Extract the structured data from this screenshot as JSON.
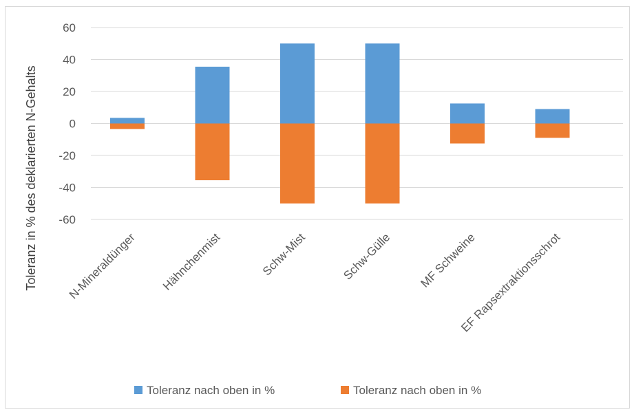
{
  "chart_data": {
    "type": "bar",
    "title": "",
    "xlabel": "",
    "ylabel": "Toleranz in % des deklarierten N-Gehalts",
    "categories": [
      "N-Mineraldünger",
      "Hähnchenmist",
      "Schw-Mist",
      "Schw-Gülle",
      "MF Schweine",
      "EF Rapsextraktionsschrot"
    ],
    "series": [
      {
        "name": "Toleranz nach oben in %",
        "color": "#5b9bd5",
        "values": [
          3.5,
          35.5,
          50,
          50,
          12.5,
          9
        ]
      },
      {
        "name": "Toleranz nach oben in %",
        "color": "#ed7d31",
        "values": [
          -3.5,
          -35.5,
          -50,
          -50,
          -12.5,
          -9
        ]
      }
    ],
    "yticks": [
      60,
      40,
      20,
      0,
      -20,
      -40,
      -60
    ],
    "ylim": [
      -60,
      60
    ],
    "grid": true,
    "legend_position": "bottom",
    "stacked": true
  }
}
